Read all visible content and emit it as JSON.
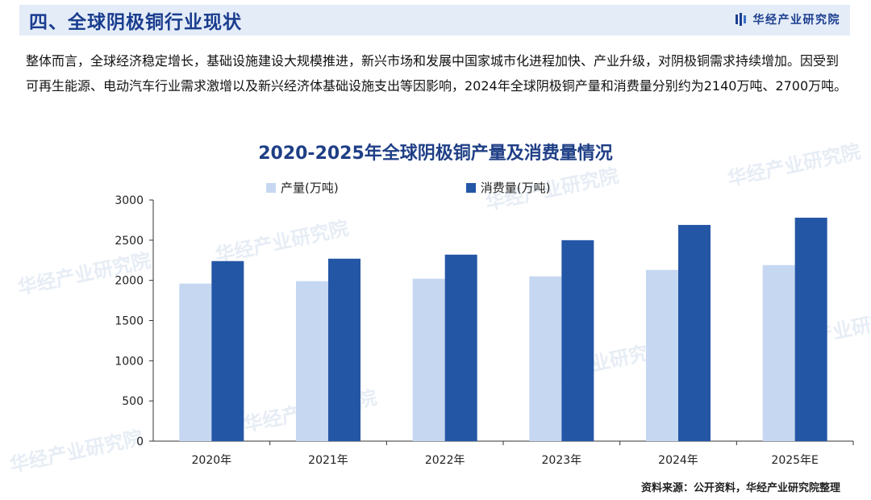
{
  "header": {
    "title": "四、全球阴极铜行业现状",
    "brand": "华经产业研究院"
  },
  "paragraph": "整体而言，全球经济稳定增长，基础设施建设大规模推进，新兴市场和发展中国家城市化进程加快、产业升级，对阴极铜需求持续增加。因受到可再生能源、电动汽车行业需求激增以及新兴经济体基础设施支出等因影响，2024年全球阴极铜产量和消费量分别约为2140万吨、2700万吨。",
  "watermark_text": "华经产业研究院",
  "colors": {
    "production": "#c5d7f1",
    "consumption": "#2456a6",
    "title": "#1f3f86"
  },
  "chart_data": {
    "type": "bar",
    "title": "2020-2025年全球阴极铜产量及消费量情况",
    "categories": [
      "2020年",
      "2021年",
      "2022年",
      "2023年",
      "2024年",
      "2025年E"
    ],
    "series": [
      {
        "name": "产量(万吨)",
        "values": [
          1960,
          1990,
          2020,
          2050,
          2130,
          2190
        ]
      },
      {
        "name": "消费量(万吨)",
        "values": [
          2240,
          2270,
          2320,
          2500,
          2690,
          2780
        ]
      }
    ],
    "yticks": [
      0,
      500,
      1000,
      1500,
      2000,
      2500,
      3000
    ],
    "ylim": [
      0,
      3000
    ],
    "legend_position": "top",
    "grid": false
  },
  "source": "资料来源：公开资料，华经产业研究院整理"
}
